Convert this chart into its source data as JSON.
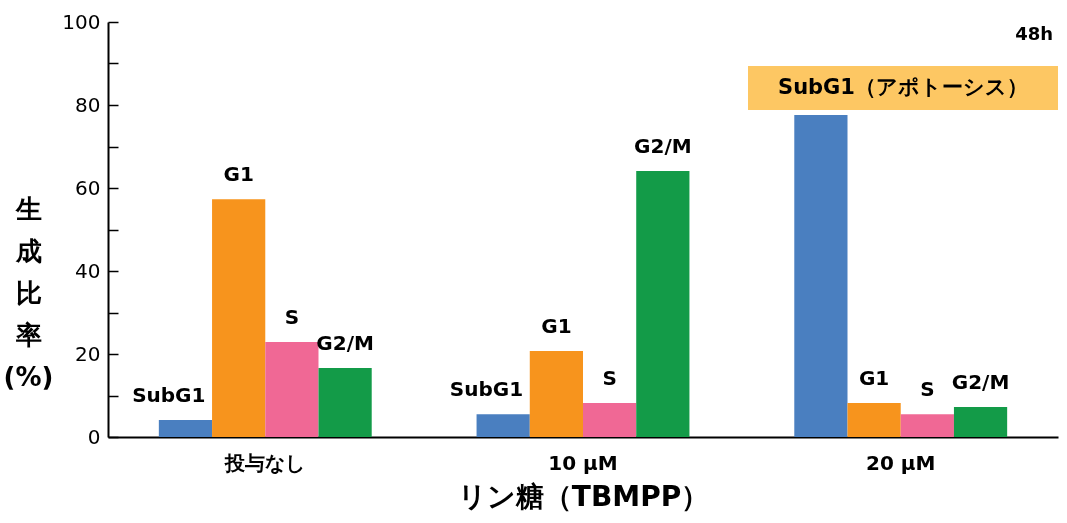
{
  "chart_data": {
    "type": "bar",
    "annotations": [
      "48h",
      "SubG1（アポトーシス）"
    ],
    "categories": [
      "投与なし",
      "10 µM",
      "20 µM"
    ],
    "xlabel": "リン糖（TBMPP）",
    "ylabel": "生成比率(%)",
    "ylim": [
      0,
      100
    ],
    "yticks": [
      0,
      {
        "value": 10,
        "label": null
      },
      20,
      {
        "value": 30,
        "label": null
      },
      40,
      {
        "value": 50,
        "label": null
      },
      60,
      {
        "value": 70,
        "label": null
      },
      80,
      {
        "value": 90,
        "label": null
      },
      100
    ],
    "series": [
      {
        "name": "SubG1",
        "color": "#4a7fc0",
        "values": [
          4.1,
          5.5,
          77.6
        ]
      },
      {
        "name": "G1",
        "color": "#f7941d",
        "values": [
          57.3,
          20.7,
          8.2
        ]
      },
      {
        "name": "S",
        "color": "#f06895",
        "values": [
          22.9,
          8.2,
          5.5
        ]
      },
      {
        "name": "G2/M",
        "color": "#139b48",
        "values": [
          16.6,
          64.1,
          7.2
        ]
      }
    ],
    "legend": false,
    "grid": false
  }
}
